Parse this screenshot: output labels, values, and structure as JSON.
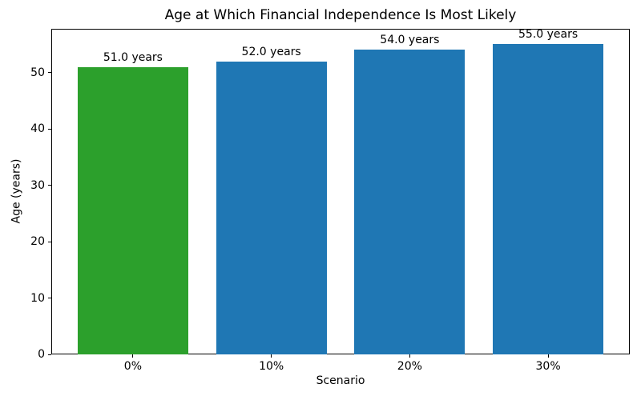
{
  "figure": {
    "background": "#ffffff",
    "spine_color": "#000000",
    "text_color": "#000000"
  },
  "chart_data": {
    "type": "bar",
    "title": "Age at Which Financial Independence Is Most Likely",
    "xlabel": "Scenario",
    "ylabel": "Age (years)",
    "categories": [
      "0%",
      "10%",
      "20%",
      "30%"
    ],
    "values": [
      51.0,
      52.0,
      54.0,
      55.0
    ],
    "bar_labels": [
      "51.0 years",
      "52.0 years",
      "54.0 years",
      "55.0 years"
    ],
    "bar_colors": [
      "#2ca02c",
      "#1f77b4",
      "#1f77b4",
      "#1f77b4"
    ],
    "yticks": [
      0,
      10,
      20,
      30,
      40,
      50
    ],
    "ylim": [
      0,
      57.75
    ],
    "grid": false,
    "legend_position": "none",
    "bar_width_fraction": 0.8
  }
}
